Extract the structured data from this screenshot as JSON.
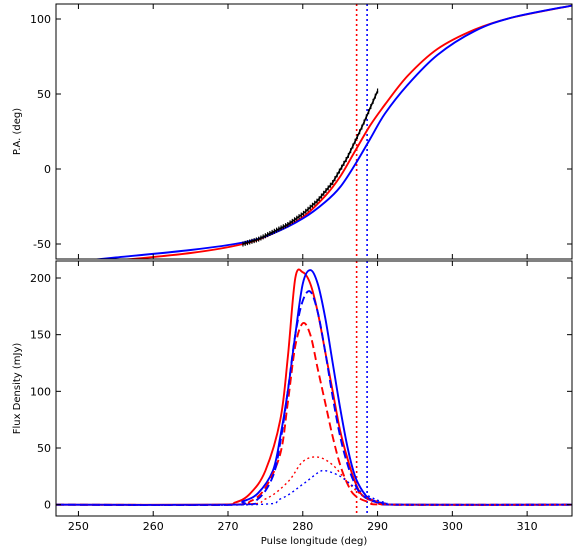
{
  "chart_data": [
    {
      "type": "line",
      "panel": "top",
      "title": "",
      "xlabel": "",
      "ylabel": "P.A. (deg)",
      "xlim": [
        247,
        316
      ],
      "ylim": [
        -60,
        110
      ],
      "yticks": [
        -50,
        0,
        50,
        100
      ],
      "grid": false,
      "vlines": [
        {
          "x": 287.2,
          "color": "#ff0000",
          "style": "dotted"
        },
        {
          "x": 288.6,
          "color": "#0000ff",
          "style": "dotted"
        }
      ],
      "series": [
        {
          "color": "#ff0000",
          "style": "solid",
          "x": [
            247,
            255,
            265,
            272,
            276,
            280,
            283,
            285,
            287,
            289,
            291,
            294,
            298,
            303,
            308,
            316
          ],
          "y": [
            -65,
            -61,
            -56,
            -50,
            -43,
            -32,
            -18,
            -5,
            12,
            29,
            43,
            62,
            80,
            93,
            101,
            109
          ]
        },
        {
          "color": "#0000ff",
          "style": "solid",
          "x": [
            247,
            255,
            265,
            272,
            276,
            280,
            283,
            285,
            287,
            289,
            291,
            294,
            298,
            303,
            308,
            316
          ],
          "y": [
            -63,
            -59,
            -54,
            -49,
            -43,
            -33,
            -22,
            -12,
            3,
            20,
            37,
            56,
            76,
            92,
            101,
            109
          ]
        },
        {
          "color": "#000000",
          "style": "data",
          "x": [
            272,
            274,
            276,
            278,
            280,
            282,
            284,
            286,
            288,
            290
          ],
          "y": [
            -50,
            -47,
            -42,
            -37,
            -30,
            -21,
            -9,
            8,
            29,
            52
          ]
        }
      ]
    },
    {
      "type": "line",
      "panel": "bottom",
      "title": "",
      "xlabel": "Pulse longitude (deg)",
      "ylabel": "Flux Density (mJy)",
      "xlim": [
        247,
        316
      ],
      "ylim": [
        -10,
        215
      ],
      "xticks": [
        250,
        260,
        270,
        280,
        290,
        300,
        310
      ],
      "yticks": [
        0,
        50,
        100,
        150,
        200
      ],
      "grid": false,
      "vlines": [
        {
          "x": 287.2,
          "color": "#ff0000",
          "style": "dotted"
        },
        {
          "x": 288.6,
          "color": "#0000ff",
          "style": "dotted"
        }
      ],
      "series": [
        {
          "color": "#ff0000",
          "style": "solid",
          "x": [
            247,
            268,
            271,
            273,
            275,
            277,
            278,
            279,
            280,
            281,
            282,
            283,
            284,
            285,
            286,
            287,
            288,
            290,
            293,
            316
          ],
          "y": [
            0,
            0,
            2,
            10,
            30,
            75,
            130,
            200,
            205,
            195,
            170,
            135,
            100,
            65,
            40,
            20,
            8,
            2,
            0,
            0
          ]
        },
        {
          "color": "#0000ff",
          "style": "solid",
          "x": [
            247,
            270,
            272,
            274,
            276,
            277,
            278,
            279,
            280,
            281,
            282,
            283,
            284,
            285,
            286,
            287,
            288,
            289,
            291,
            294,
            316
          ],
          "y": [
            0,
            0,
            3,
            10,
            30,
            60,
            100,
            150,
            195,
            207,
            195,
            165,
            125,
            85,
            50,
            25,
            12,
            5,
            1,
            0,
            0
          ]
        },
        {
          "color": "#ff0000",
          "style": "dashed",
          "x": [
            247,
            270,
            273,
            275,
            277,
            278,
            279,
            280,
            281,
            282,
            283,
            284,
            285,
            286,
            287,
            289,
            292,
            316
          ],
          "y": [
            0,
            0,
            3,
            15,
            45,
            90,
            140,
            160,
            150,
            120,
            90,
            60,
            35,
            18,
            8,
            2,
            0,
            0
          ]
        },
        {
          "color": "#0000ff",
          "style": "dashed",
          "x": [
            247,
            271,
            274,
            276,
            277,
            278,
            279,
            280,
            281,
            282,
            283,
            284,
            285,
            286,
            287,
            288,
            290,
            293,
            316
          ],
          "y": [
            0,
            0,
            5,
            25,
            55,
            100,
            150,
            180,
            188,
            170,
            135,
            95,
            60,
            35,
            18,
            8,
            2,
            0,
            0
          ]
        },
        {
          "color": "#ff0000",
          "style": "dotted",
          "x": [
            247,
            271,
            275,
            278,
            280,
            282,
            284,
            286,
            288,
            290,
            293,
            316
          ],
          "y": [
            0,
            0,
            5,
            20,
            38,
            42,
            35,
            20,
            8,
            3,
            0,
            0
          ]
        },
        {
          "color": "#0000ff",
          "style": "dotted",
          "x": [
            247,
            273,
            277,
            280,
            282,
            283,
            285,
            287,
            289,
            291,
            294,
            316
          ],
          "y": [
            0,
            0,
            5,
            18,
            28,
            30,
            25,
            15,
            7,
            2,
            0,
            0
          ]
        }
      ]
    }
  ]
}
